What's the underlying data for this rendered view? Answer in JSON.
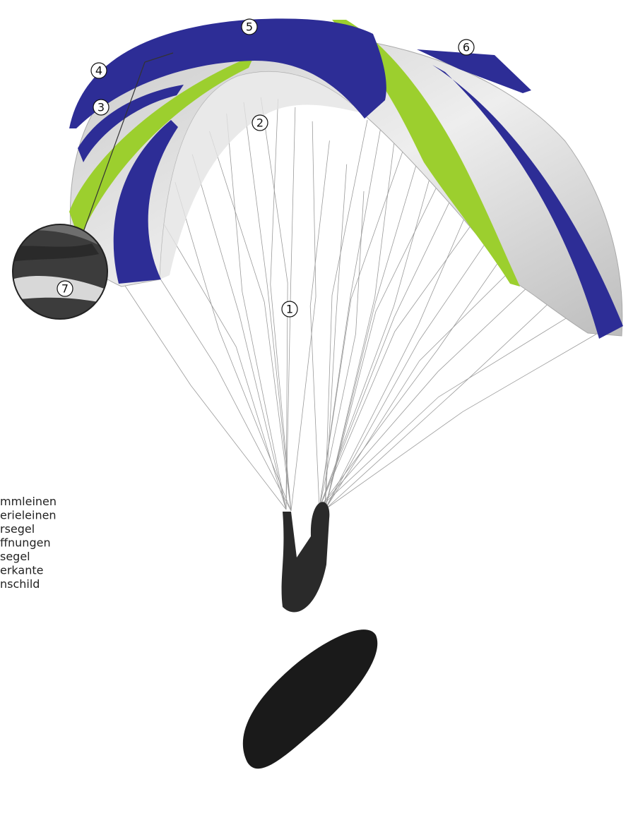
{
  "callouts": [
    "1",
    "2",
    "3",
    "4",
    "5",
    "6",
    "7"
  ],
  "legend": [
    "mmleinen",
    "erieleinen",
    "rsegel",
    "ffnungen",
    "segel",
    "erkante",
    "nschild"
  ]
}
